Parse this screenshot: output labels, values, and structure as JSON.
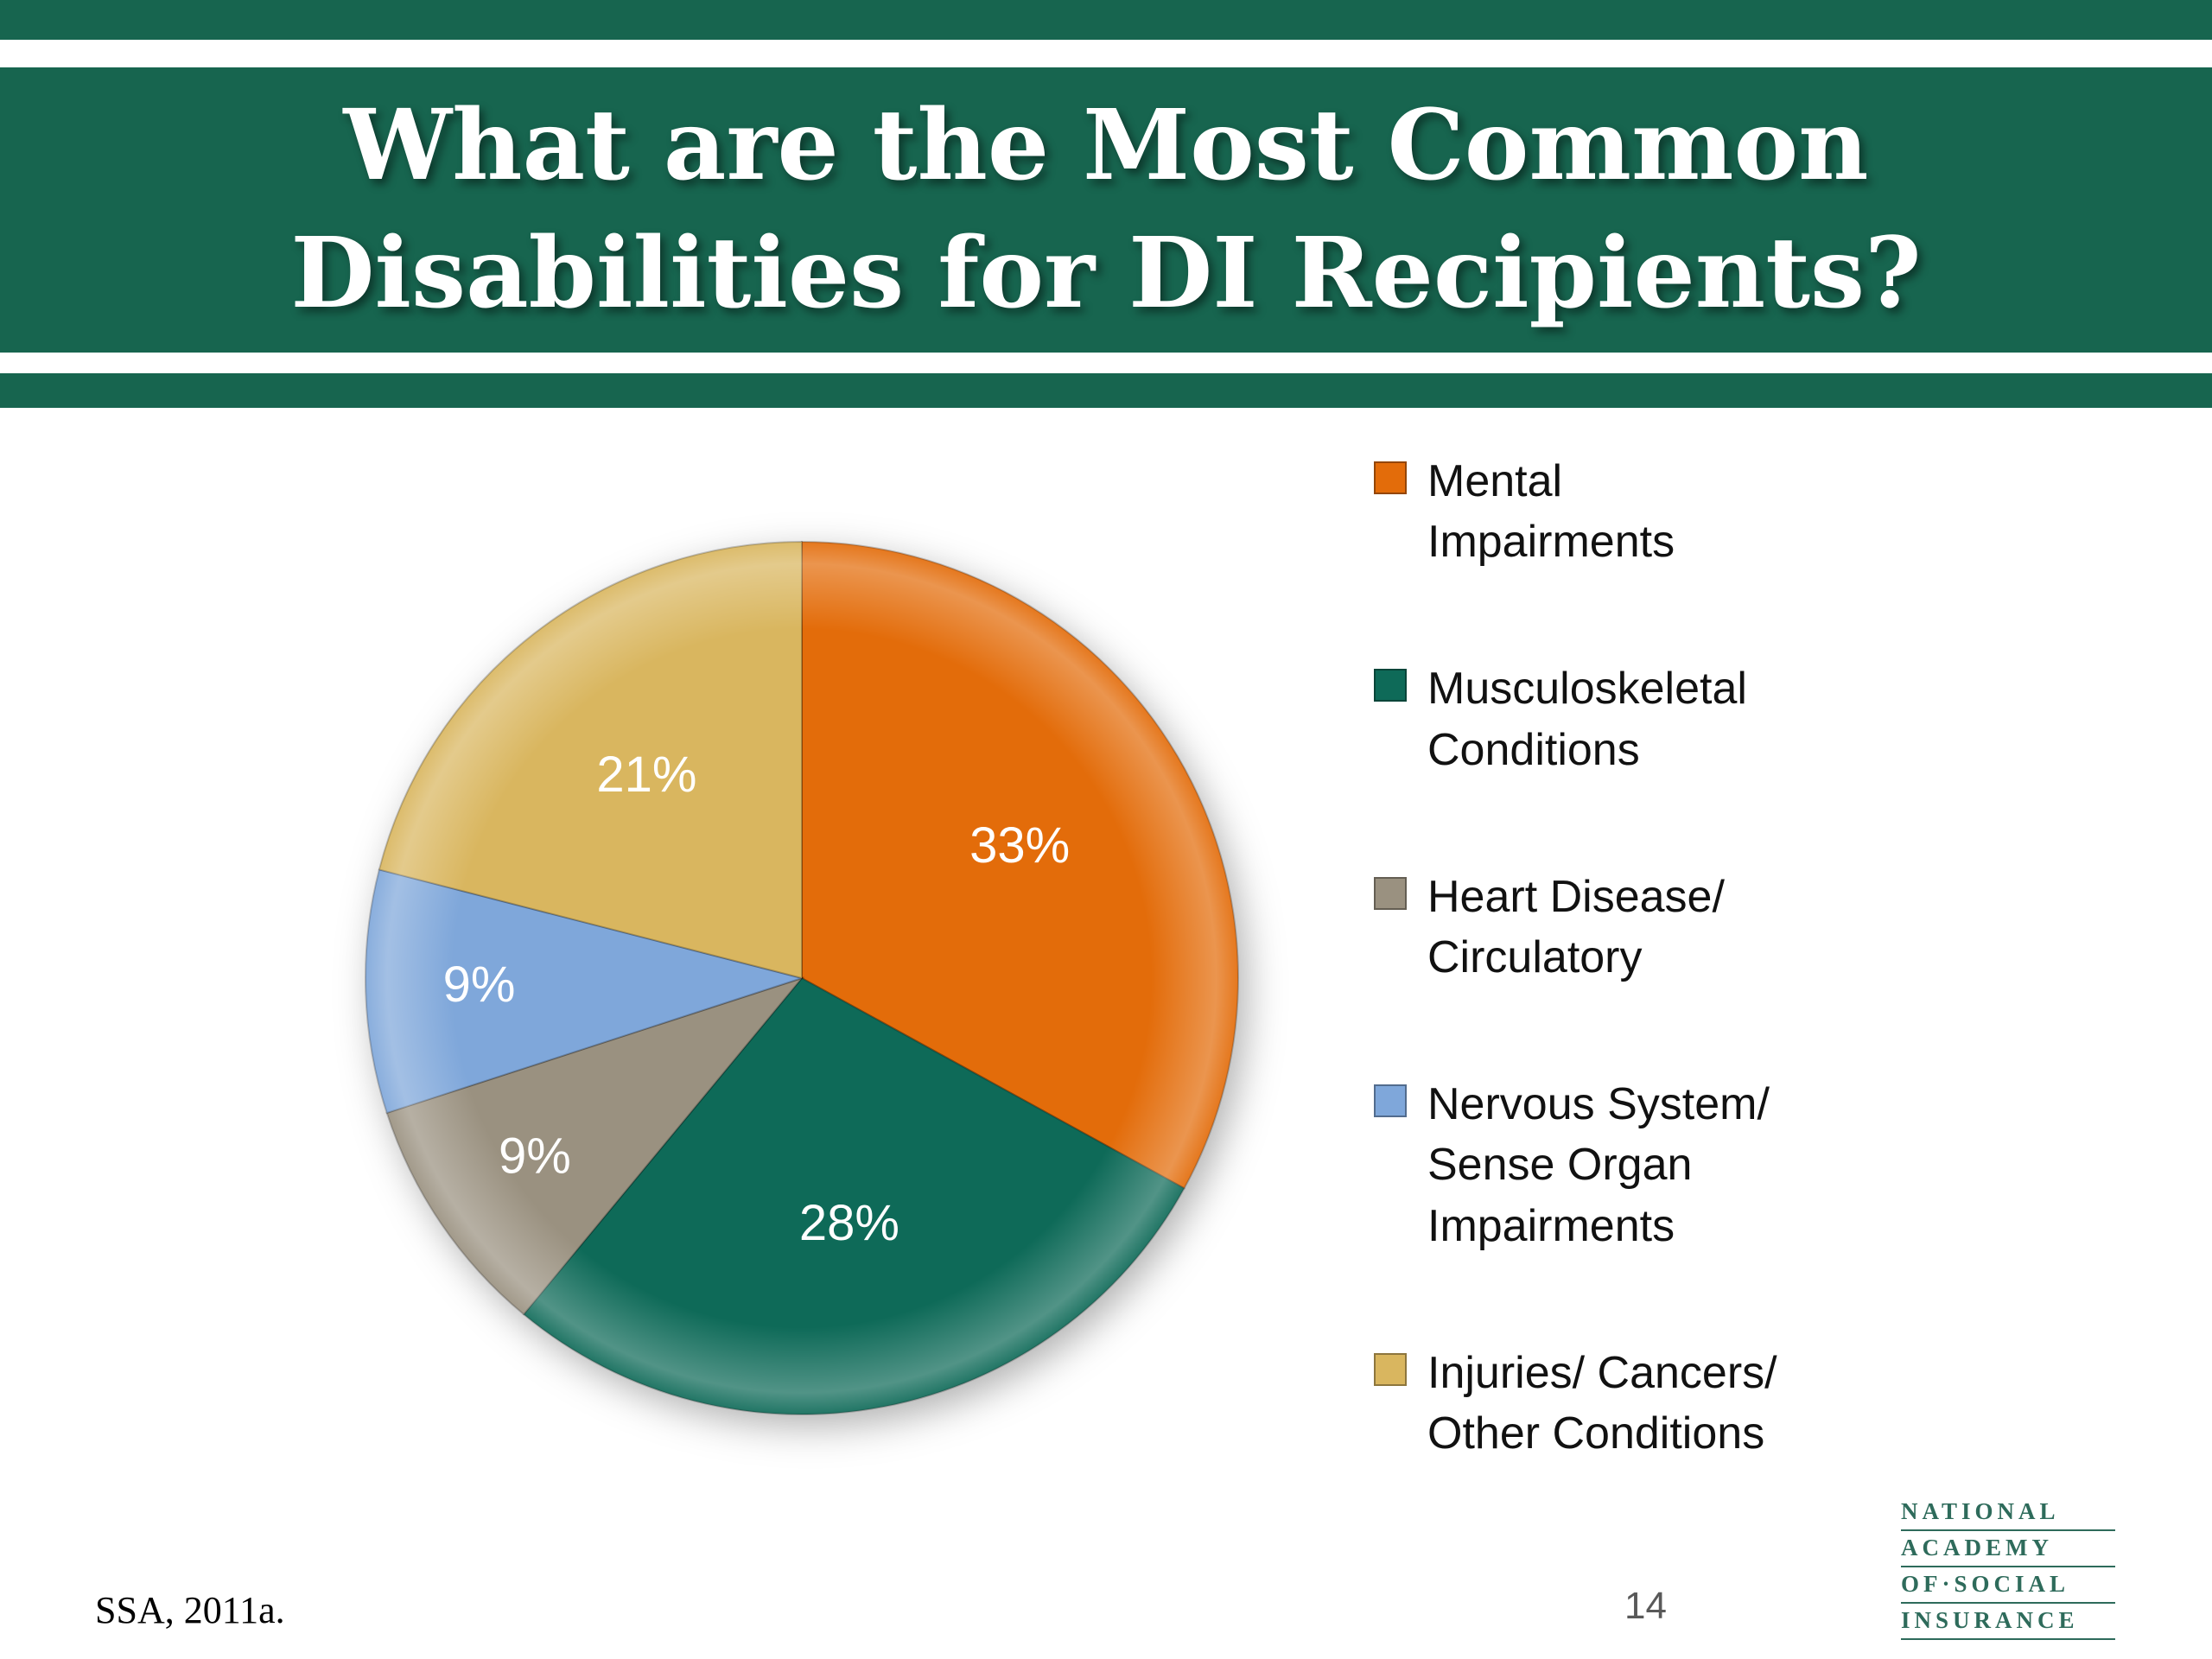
{
  "slide": {
    "title_line1": "What are the Most Common",
    "title_line2": "Disabilities for DI Recipients?",
    "footer_citation": "SSA, 2011a.",
    "page_number": "14",
    "logo_lines": [
      "NATIONAL",
      "ACADEMY",
      "OF·SOCIAL",
      "INSURANCE"
    ]
  },
  "colors": {
    "header_green": "#17654F",
    "logo_green": "#2E6B5B",
    "slice_label_text": "#FFFFFF"
  },
  "chart_data": {
    "type": "pie",
    "title": "What are the Most Common Disabilities for DI Recipients?",
    "start_angle_deg": 0,
    "direction": "clockwise",
    "legend_position": "right",
    "slices": [
      {
        "label": "Mental Impairments",
        "value": 33,
        "display_label": "33%",
        "color": "#E36C0A"
      },
      {
        "label": "Musculoskeletal Conditions",
        "value": 28,
        "display_label": "28%",
        "color": "#0E6A58"
      },
      {
        "label": "Heart Disease/ Circulatory",
        "value": 9,
        "display_label": "9%",
        "color": "#9A9180"
      },
      {
        "label": "Nervous System/ Sense Organ Impairments",
        "value": 9,
        "display_label": "9%",
        "color": "#7FA7DA"
      },
      {
        "label": "Injuries/ Cancers/ Other Conditions",
        "value": 21,
        "display_label": "21%",
        "color": "#D9B65F"
      }
    ]
  },
  "legend": {
    "items": [
      {
        "text": "Mental\nImpairments",
        "color": "#E36C0A"
      },
      {
        "text": "Musculoskeletal\nConditions",
        "color": "#0E6A58"
      },
      {
        "text": "Heart Disease/\nCirculatory",
        "color": "#9A9180"
      },
      {
        "text": "Nervous System/\nSense Organ\nImpairments",
        "color": "#7FA7DA"
      },
      {
        "text": "Injuries/ Cancers/\nOther Conditions",
        "color": "#D9B65F"
      }
    ]
  }
}
